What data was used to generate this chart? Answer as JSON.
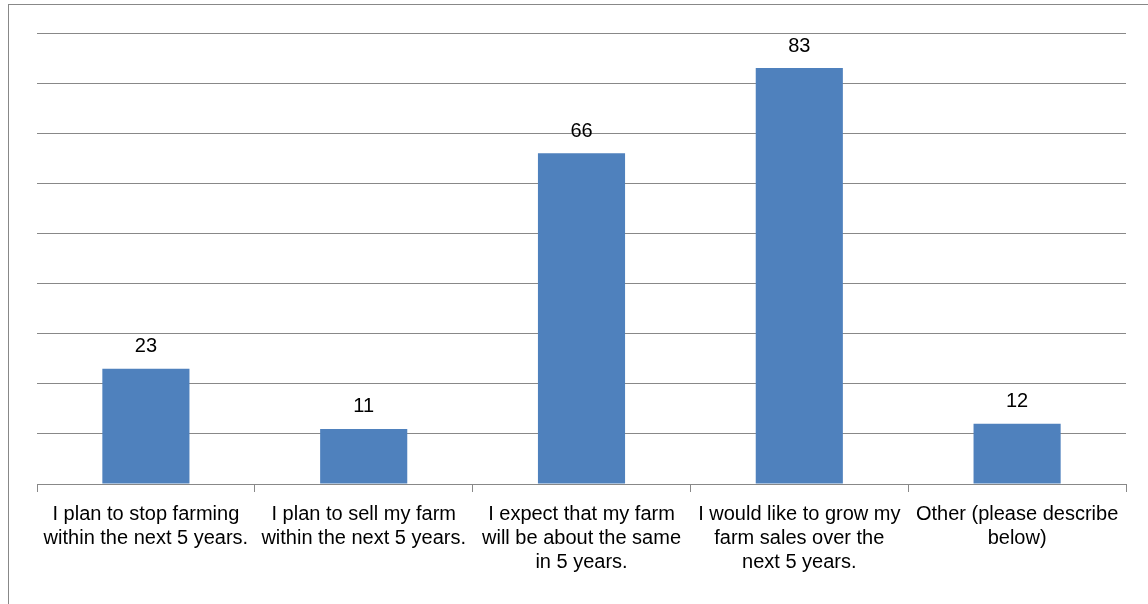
{
  "chart_data": {
    "type": "bar",
    "categories": [
      "I plan to stop farming within the next 5 years.",
      "I plan to sell my farm within the next 5 years.",
      "I expect that my farm will be about the same in 5 years.",
      "I would like to grow my farm sales over the next 5 years.",
      "Other (please describe below)"
    ],
    "values": [
      23,
      11,
      66,
      83,
      12
    ],
    "color": "#4f81bd",
    "ylim": [
      0,
      90
    ],
    "yticks": [
      {
        "value": 0,
        "label": null
      },
      {
        "value": 10,
        "label": null
      },
      {
        "value": 20,
        "label": null
      },
      {
        "value": 30,
        "label": null
      },
      {
        "value": 40,
        "label": null
      },
      {
        "value": 50,
        "label": null
      },
      {
        "value": 60,
        "label": null
      },
      {
        "value": 70,
        "label": null
      },
      {
        "value": 80,
        "label": null
      },
      {
        "value": 90,
        "label": null
      }
    ],
    "tick_labels": "x",
    "grid": "y",
    "legend": false,
    "data_labels": true
  }
}
